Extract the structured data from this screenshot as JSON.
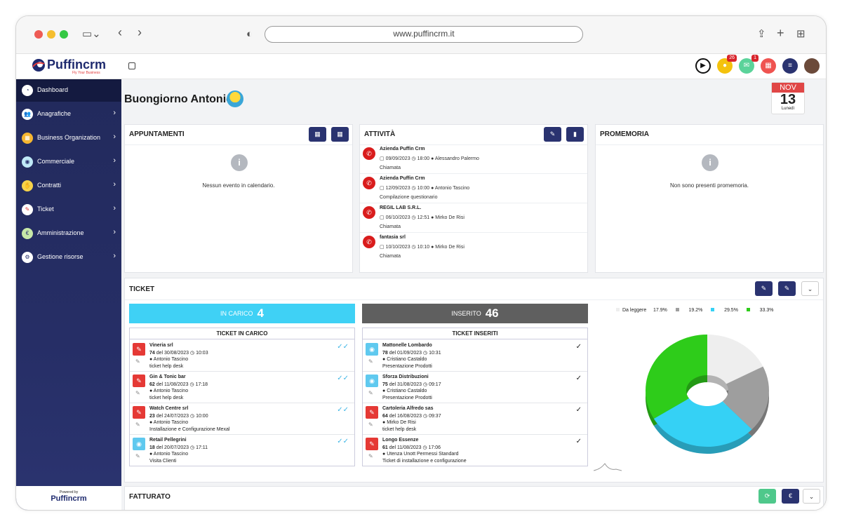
{
  "browser": {
    "url": "www.puffincrm.it"
  },
  "app": {
    "brand": "Puffincrm",
    "tagline": "Fly Your Business",
    "powered_by": "Powered by"
  },
  "header": {
    "notifications_count": "26",
    "messages_count": "1"
  },
  "sidebar": {
    "items": [
      {
        "label": "Dashboard",
        "icon": "dashboard-icon"
      },
      {
        "label": "Anagrafiche",
        "icon": "users-icon"
      },
      {
        "label": "Business Organization",
        "icon": "calendar-icon"
      },
      {
        "label": "Commerciale",
        "icon": "eye-icon"
      },
      {
        "label": "Contratti",
        "icon": "handshake-icon"
      },
      {
        "label": "Ticket",
        "icon": "wrench-icon"
      },
      {
        "label": "Amministrazione",
        "icon": "euro-icon"
      },
      {
        "label": "Gestione risorse",
        "icon": "user-gear-icon"
      }
    ]
  },
  "greeting": "Buongiorno Antonio",
  "calendar": {
    "month": "NOV",
    "day": "13",
    "weekday": "Lunedì"
  },
  "appointments": {
    "title": "APPUNTAMENTI",
    "empty": "Nessun evento in calendario."
  },
  "activities": {
    "title": "ATTIVITÀ",
    "items": [
      {
        "company": "Azienda Puffin Crm",
        "date": "09/09/2023",
        "time": "18:00",
        "user": "Alessandro Palermo",
        "type": "Chiamata"
      },
      {
        "company": "Azienda Puffin Crm",
        "date": "12/09/2023",
        "time": "10:00",
        "user": "Antonio Tascino",
        "type": "Compilazione questionario"
      },
      {
        "company": "REGIL LAB S.R.L.",
        "date": "06/10/2023",
        "time": "12:51",
        "user": "Mirko De Risi",
        "type": "Chiamata"
      },
      {
        "company": "fantasia srl",
        "date": "10/10/2023",
        "time": "10:10",
        "user": "Mirko De Risi",
        "type": "Chiamata"
      }
    ]
  },
  "reminders": {
    "title": "PROMEMORIA",
    "empty": "Non sono presenti promemoria."
  },
  "ticket": {
    "title": "TICKET",
    "in_charge": {
      "label": "IN CARICO",
      "count": "4",
      "list_title": "TICKET IN CARICO"
    },
    "inserted": {
      "label": "INSERITO",
      "count": "46",
      "list_title": "TICKET INSERITI"
    },
    "in_charge_items": [
      {
        "company": "Vineria srl",
        "number": "74",
        "date": "del 30/08/2023",
        "time": "10:03",
        "user": "Antonio Tascino",
        "desc": "ticket help desk"
      },
      {
        "company": "Gin & Tonic bar",
        "number": "62",
        "date": "del 11/08/2023",
        "time": "17:18",
        "user": "Antonio Tascino",
        "desc": "ticket help desk"
      },
      {
        "company": "Watch Centre srl",
        "number": "23",
        "date": "del 24/07/2023",
        "time": "10:00",
        "user": "Antonio Tascino",
        "desc": "Installazione e Configurazione Mexal"
      },
      {
        "company": "Retail Pellegrini",
        "number": "18",
        "date": "del 20/07/2023",
        "time": "17:11",
        "user": "Antonio Tascino",
        "desc": "Visita Clienti"
      }
    ],
    "inserted_items": [
      {
        "company": "Mattonelle Lombardo",
        "number": "78",
        "date": "del 01/09/2023",
        "time": "10:31",
        "user": "Cristiano Castaldo",
        "desc": "Presentazione Prodotti"
      },
      {
        "company": "Sforza Distribuzioni",
        "number": "75",
        "date": "del 31/08/2023",
        "time": "09:17",
        "user": "Cristiano Castaldo",
        "desc": "Presentazione Prodotti"
      },
      {
        "company": "Cartoleria Alfredo sas",
        "number": "64",
        "date": "del 16/08/2023",
        "time": "09:37",
        "user": "Mirko De Risi",
        "desc": "ticket help desk"
      },
      {
        "company": "Longo Essenze",
        "number": "61",
        "date": "del 11/08/2023",
        "time": "17:06",
        "user": "Utenza Unott Permessi Standard",
        "desc": "Ticket di installazione e configurazione"
      }
    ]
  },
  "fatturato": {
    "title": "FATTURATO"
  },
  "chart_data": {
    "type": "pie",
    "series": [
      {
        "name": "Da leggere",
        "value": 17.9,
        "label": "17.9%",
        "color": "#eeeeee"
      },
      {
        "name": "",
        "value": 19.2,
        "label": "19.2%",
        "color": "#9e9e9e"
      },
      {
        "name": "",
        "value": 29.5,
        "label": "29.5%",
        "color": "#35d1f5"
      },
      {
        "name": "",
        "value": 33.3,
        "label": "33.3%",
        "color": "#2ecc1a"
      }
    ]
  }
}
